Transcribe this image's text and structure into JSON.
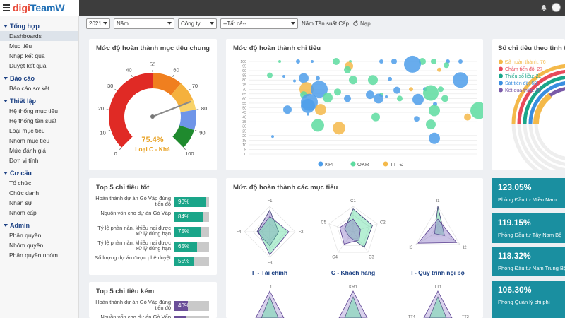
{
  "app": {
    "brand_prefix": "digi",
    "brand_name": "TeamW"
  },
  "sidebar": {
    "groups": [
      {
        "title": "Tổng hợp",
        "items": [
          "Dashboards",
          "Mục tiêu",
          "Nhập kết quả",
          "Duyệt kết quả"
        ]
      },
      {
        "title": "Báo cáo",
        "items": [
          "Báo cáo sơ kết"
        ]
      },
      {
        "title": "Thiết lập",
        "items": [
          "Hệ thống mục tiêu",
          "Hệ thống tần suất",
          "Loại mục tiêu",
          "Nhóm mục tiêu",
          "Mức đánh giá",
          "Đơn vị tính"
        ]
      },
      {
        "title": "Cơ cấu",
        "items": [
          "Tổ chức",
          "Chức danh",
          "Nhân sự",
          "Nhóm cấp"
        ]
      },
      {
        "title": "Admin",
        "items": [
          "Phân quyền",
          "Nhóm quyền",
          "Phân quyền nhóm"
        ]
      }
    ]
  },
  "filters": {
    "year": "2021",
    "period": "Năm",
    "org": "Công ty",
    "all": "--Tất cả--",
    "label": "Năm Tần suất Cấp",
    "reload": "Nạp"
  },
  "gauge": {
    "title": "Mức độ hoàn thành mục tiêu chung",
    "value": 75.4,
    "value_label": "75.4%",
    "grade": "Loại C - Khá",
    "ticks": [
      "0",
      "10",
      "20",
      "30",
      "40",
      "50",
      "60",
      "70",
      "80",
      "90",
      "100"
    ]
  },
  "bubble": {
    "title": "Mức độ hoàn thành chỉ tiêu",
    "y_ticks": [
      "100",
      "95",
      "90",
      "85",
      "80",
      "75",
      "70",
      "65",
      "60",
      "55",
      "50",
      "45",
      "40",
      "35",
      "30",
      "25",
      "20",
      "15",
      "10",
      "5",
      "0"
    ],
    "legend": [
      "KPI",
      "OKR",
      "TTTĐ"
    ],
    "colors": [
      "#4d9eea",
      "#5ddca0",
      "#f4b94a"
    ]
  },
  "side_chart": {
    "title": "Số chỉ tiêu theo tình tr",
    "items": [
      {
        "label": "Đã hoàn thành: 76",
        "color": "#f4b94a"
      },
      {
        "label": "Chậm tiến độ: 27",
        "color": "#e8495a"
      },
      {
        "label": "Thiếu số liệu: 21",
        "color": "#1aa589"
      },
      {
        "label": "Sát tiến độ: 60",
        "color": "#3a8ee0"
      },
      {
        "label": "Kết quả thấp: 55",
        "color": "#7a5aa8"
      }
    ]
  },
  "top_good": {
    "title": "Top 5 chỉ tiêu tốt",
    "color": "#1aa589",
    "items": [
      {
        "label": "Hoàn thành dự án Gò Vấp đúng tiến độ",
        "pct": 90,
        "text": "90%"
      },
      {
        "label": "Nguồn vốn cho dự án Gò Vấp",
        "pct": 84,
        "text": "84%"
      },
      {
        "label": "Tỷ lệ phàn nàn, khiếu nại được xử lý đúng hạn",
        "pct": 75,
        "text": "75%"
      },
      {
        "label": "Tỷ lệ phàn nàn, khiếu nại được xử lý đúng hạn",
        "pct": 65,
        "text": "65%"
      },
      {
        "label": "Số lượng dự án được phê duyệt",
        "pct": 55,
        "text": "55%"
      }
    ]
  },
  "top_bad": {
    "title": "Top 5 chỉ tiêu kém",
    "color": "#6a4e98",
    "items": [
      {
        "label": "Hoàn thành dự án Gò Vấp đúng tiến độ",
        "pct": 40,
        "text": "40%"
      },
      {
        "label": "Nguồn vốn cho dự án Gò Vấp",
        "pct": 35,
        "text": ""
      }
    ]
  },
  "radar": {
    "title": "Mức độ hoàn thành các mục tiêu",
    "charts": [
      {
        "name": "F - Tài chính",
        "axes": [
          "F1",
          "F2",
          "F3",
          "F4"
        ]
      },
      {
        "name": "C - Khách hàng",
        "axes": [
          "C1",
          "C2",
          "C3",
          "C4",
          "C5"
        ]
      },
      {
        "name": "I - Quy trình nội bộ",
        "axes": [
          "I1",
          "I2",
          "I3"
        ]
      }
    ],
    "bottom_axes": [
      "L1",
      "KR1",
      "TT1",
      "TT4",
      "TT2"
    ]
  },
  "kpis": [
    {
      "value": "123.05%",
      "label": "Phòng Đầu tư Miền Nam"
    },
    {
      "value": "119.15%",
      "label": "Phòng Đầu tư Tây Nam Bộ"
    },
    {
      "value": "118.32%",
      "label": "Phòng Đầu tư Nam Trung Bộ"
    },
    {
      "value": "106.30%",
      "label": "Phòng Quản lý chi phí"
    }
  ]
}
